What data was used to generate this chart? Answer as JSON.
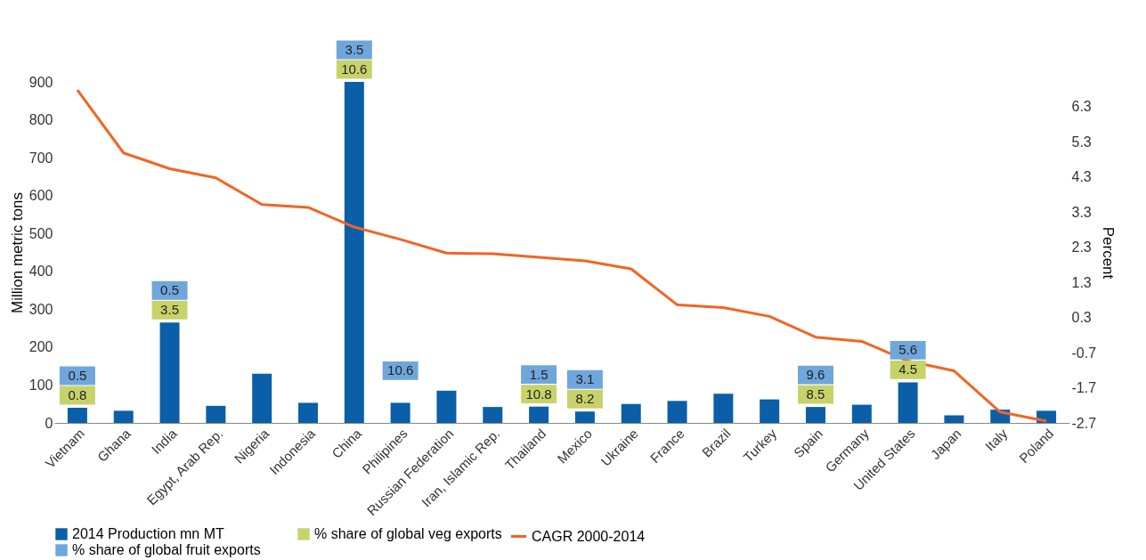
{
  "chart_data": {
    "type": "bar",
    "categories": [
      "Vietnam",
      "Ghana",
      "India",
      "Egypt, Arab Rep.",
      "Nigeria",
      "Indonesia",
      "China",
      "Philipines",
      "Russian Federation",
      "Iran, Islamic Rep.",
      "Thailand",
      "Mexico",
      "Ukraine",
      "France",
      "Brazil",
      "Turkey",
      "Spain",
      "Germany",
      "United States",
      "Japan",
      "Italy",
      "Poland"
    ],
    "ylabel": "Million metric tons",
    "y2label": "Percent",
    "ylim": [
      0,
      900
    ],
    "yticks": [
      0,
      100,
      200,
      300,
      400,
      500,
      600,
      700,
      800,
      900
    ],
    "y2lim": [
      -2.7,
      7.0
    ],
    "y2ticks": [
      -2.7,
      -1.7,
      -0.7,
      0.3,
      1.3,
      2.3,
      3.3,
      4.3,
      5.3,
      6.3
    ],
    "legend": "bottom",
    "grid": false,
    "series": [
      {
        "name": "2014 Production mn MT",
        "color": "#0a5fa8",
        "values": [
          40,
          32,
          265,
          45,
          130,
          53,
          900,
          53,
          85,
          42,
          43,
          30,
          50,
          58,
          77,
          62,
          42,
          48,
          107,
          20,
          35,
          32
        ]
      },
      {
        "name": "CAGR 2000-2014",
        "type": "line",
        "axis": "y2",
        "marker": "none",
        "line_style": "solid",
        "color": "#f26522",
        "values": [
          6.77,
          4.98,
          4.53,
          4.27,
          3.51,
          3.43,
          2.87,
          2.52,
          2.13,
          2.11,
          2.01,
          1.91,
          1.68,
          0.66,
          0.58,
          0.33,
          -0.26,
          -0.38,
          -0.94,
          -1.22,
          -2.39,
          -2.65
        ]
      },
      {
        "name": "% share of global veg exports",
        "type": "other",
        "color": "#c8d26a",
        "values": [
          null,
          null,
          null,
          null,
          null,
          null,
          null,
          null,
          null,
          null,
          null,
          null,
          null,
          null,
          null,
          null,
          null,
          null,
          null,
          null,
          null,
          null
        ],
        "value_labels": [
          "0.8",
          null,
          "3.5",
          null,
          null,
          null,
          "10.6",
          null,
          null,
          null,
          "10.8",
          "8.2",
          null,
          null,
          null,
          null,
          "8.5",
          null,
          "4.5",
          null,
          null,
          null
        ]
      },
      {
        "name": "% share of global fruit exports",
        "type": "other",
        "color": "#6fa6dc",
        "values": [
          null,
          null,
          null,
          null,
          null,
          null,
          null,
          null,
          null,
          null,
          null,
          null,
          null,
          null,
          null,
          null,
          null,
          null,
          null,
          null,
          null,
          null
        ],
        "value_labels": [
          "0.5",
          null,
          "0.5",
          null,
          null,
          null,
          "3.5",
          "10.6",
          null,
          null,
          "1.5",
          "3.1",
          null,
          null,
          null,
          null,
          "9.6",
          null,
          "5.6",
          null,
          null,
          null
        ]
      }
    ]
  }
}
